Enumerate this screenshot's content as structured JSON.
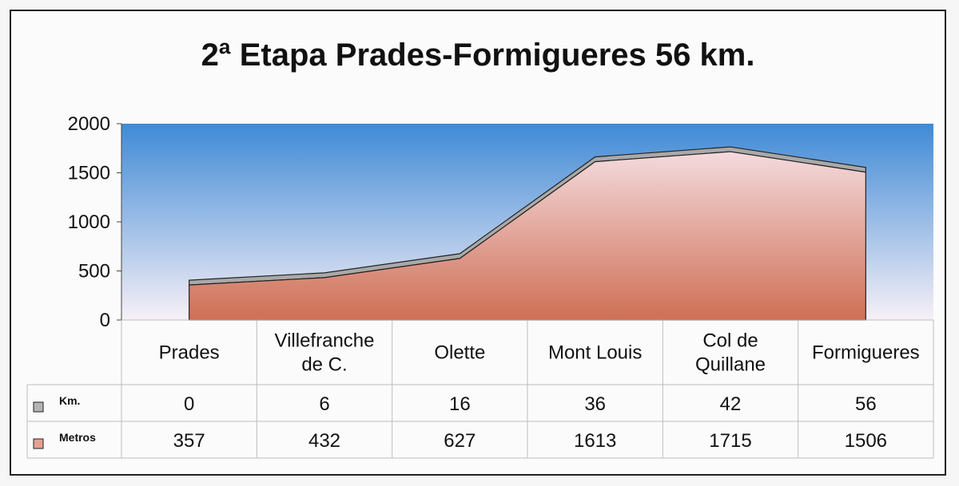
{
  "chart_data": {
    "type": "area",
    "title": "2ª Etapa Prades-Formigueres 56 km.",
    "categories": [
      [
        "Prades"
      ],
      [
        "Villefranche",
        "de C."
      ],
      [
        "Olette"
      ],
      [
        "Mont Louis"
      ],
      [
        "Col de",
        "Quillane"
      ],
      [
        "Formigueres"
      ]
    ],
    "ylim": [
      0,
      2000
    ],
    "yticks": [
      "0",
      "500",
      "1000",
      "1500",
      "2000"
    ],
    "ytick_values": [
      0,
      500,
      1000,
      1500,
      2000
    ],
    "series": [
      {
        "name": "Km.",
        "values": [
          0,
          6,
          16,
          36,
          42,
          56
        ],
        "color": "#b4b4b4"
      },
      {
        "name": "Metros",
        "values": [
          357,
          432,
          627,
          1613,
          1715,
          1506
        ],
        "color": "#e6a090"
      }
    ],
    "legend": "table-left",
    "grid": false
  },
  "colors": {
    "sky_top": "#3f8ad6",
    "sky_bottom": "#f7f0f6",
    "area_top": "#f4dadd",
    "area_bottom": "#cf6f55",
    "km_band": "#a9a9a9"
  }
}
